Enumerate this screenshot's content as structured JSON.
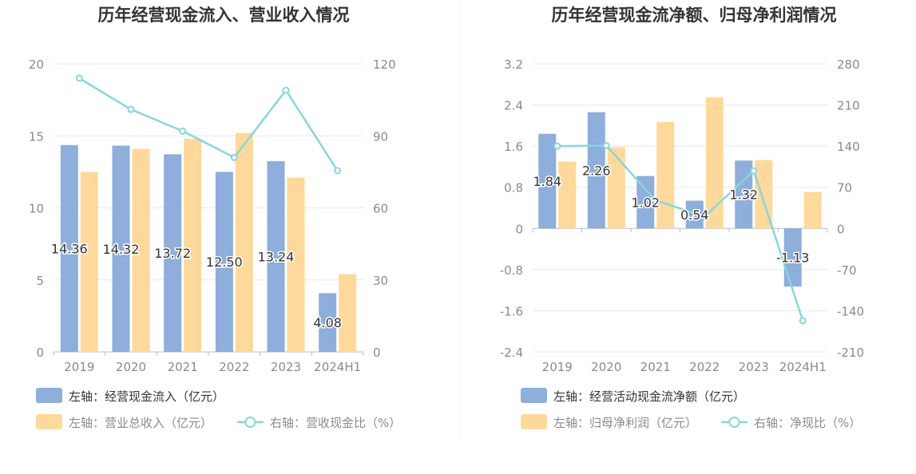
{
  "chart_data": [
    {
      "type": "bar",
      "title": "历年经营现金流入、营业收入情况",
      "categories": [
        "2019",
        "2020",
        "2021",
        "2022",
        "2023",
        "2024H1"
      ],
      "y_left": {
        "lim": [
          0,
          20
        ],
        "ticks": [
          "0",
          "5",
          "10",
          "15",
          "20"
        ]
      },
      "y_right": {
        "lim": [
          0,
          120
        ],
        "ticks": [
          "0",
          "30",
          "60",
          "90",
          "120"
        ]
      },
      "grid": true,
      "legend_position": "bottom-left",
      "series": [
        {
          "name": "左轴：经营现金流入（亿元）",
          "kind": "bar",
          "axis": "left",
          "color": "#8eaedb",
          "values": [
            14.36,
            14.32,
            13.72,
            12.5,
            13.24,
            4.08
          ],
          "labels": [
            "14.36",
            "14.32",
            "13.72",
            "12.50",
            "13.24",
            "4.08"
          ]
        },
        {
          "name": "左轴：营业总收入（亿元）",
          "kind": "bar",
          "axis": "left",
          "color": "#ffd99b",
          "values": [
            12.5,
            14.1,
            14.8,
            15.2,
            12.1,
            5.4
          ]
        },
        {
          "name": "右轴：营收现金比（%）",
          "kind": "line",
          "axis": "right",
          "color": "#88d6db",
          "values": [
            114,
            101,
            92,
            81,
            109,
            75.5
          ]
        }
      ]
    },
    {
      "type": "bar",
      "title": "历年经营现金流净额、归母净利润情况",
      "categories": [
        "2019",
        "2020",
        "2021",
        "2022",
        "2023",
        "2024H1"
      ],
      "y_left": {
        "lim": [
          -2.4,
          3.2
        ],
        "ticks": [
          "-2.4",
          "-1.6",
          "-0.8",
          "0",
          "0.8",
          "1.6",
          "2.4",
          "3.2"
        ]
      },
      "y_right": {
        "lim": [
          -210,
          280
        ],
        "ticks": [
          "-210",
          "-140",
          "-70",
          "0",
          "70",
          "140",
          "210",
          "280"
        ]
      },
      "grid": true,
      "legend_position": "bottom-left",
      "series": [
        {
          "name": "左轴：经营活动现金流净额（亿元）",
          "kind": "bar",
          "axis": "left",
          "color": "#8eaedb",
          "values": [
            1.84,
            2.26,
            1.02,
            0.54,
            1.32,
            -1.13
          ],
          "labels": [
            "1.84",
            "2.26",
            "1.02",
            "0.54",
            "1.32",
            "-1.13"
          ]
        },
        {
          "name": "左轴：归母净利润（亿元）",
          "kind": "bar",
          "axis": "left",
          "color": "#ffd99b",
          "values": [
            1.3,
            1.58,
            2.07,
            2.55,
            1.33,
            0.71
          ]
        },
        {
          "name": "右轴：净现比（%）",
          "kind": "line",
          "axis": "right",
          "color": "#88d6db",
          "values": [
            140,
            141,
            48,
            20,
            98,
            -157
          ]
        }
      ]
    }
  ]
}
